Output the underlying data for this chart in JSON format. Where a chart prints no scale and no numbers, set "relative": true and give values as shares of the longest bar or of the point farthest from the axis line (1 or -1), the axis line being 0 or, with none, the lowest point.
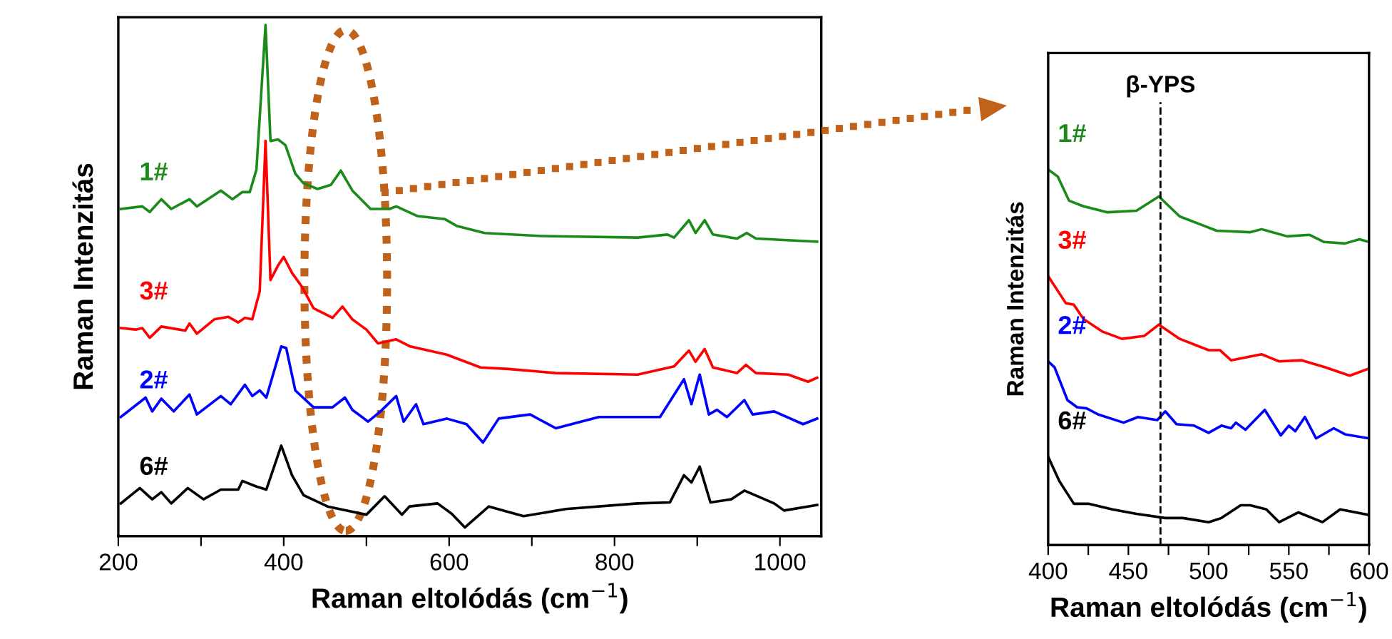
{
  "chart_data": [
    {
      "type": "line",
      "relative": true,
      "xlabel": "Raman eltolódás (cm$^{−1}$)",
      "ylabel": "Raman Intenzitás",
      "xlim": [
        200,
        1050
      ],
      "xticks": [
        200,
        {
          "value": 300,
          "label": null
        },
        400,
        {
          "value": 500,
          "label": null
        },
        600,
        {
          "value": 700,
          "label": null
        },
        800,
        {
          "value": 900,
          "label": null
        },
        1000
      ],
      "tick_labels": "x",
      "grid": false,
      "legend": false,
      "series": [
        {
          "name": "1#",
          "color": "#1a8a1a",
          "x": [
            203,
            229,
            238,
            252,
            264,
            286,
            295,
            324,
            338,
            350,
            359,
            367,
            378,
            384,
            393,
            402,
            414,
            424,
            441,
            457,
            469,
            483,
            505,
            528,
            536,
            562,
            595,
            609,
            643,
            712,
            828,
            864,
            872,
            890,
            898,
            909,
            919,
            948,
            960,
            971,
            1045
          ],
          "values": [
            0.64,
            0.645,
            0.634,
            0.659,
            0.64,
            0.659,
            0.645,
            0.676,
            0.659,
            0.673,
            0.673,
            0.717,
            1.0,
            0.773,
            0.776,
            0.765,
            0.709,
            0.69,
            0.679,
            0.687,
            0.715,
            0.676,
            0.64,
            0.64,
            0.645,
            0.626,
            0.62,
            0.607,
            0.593,
            0.587,
            0.584,
            0.59,
            0.584,
            0.618,
            0.593,
            0.618,
            0.59,
            0.582,
            0.593,
            0.582,
            0.576
          ]
        },
        {
          "name": "3#",
          "color": "#ff0000",
          "x": [
            203,
            221,
            229,
            238,
            252,
            281,
            286,
            295,
            316,
            333,
            345,
            353,
            362,
            371,
            378,
            384,
            393,
            400,
            410,
            422,
            436,
            459,
            471,
            483,
            500,
            514,
            536,
            553,
            597,
            638,
            672,
            729,
            828,
            850,
            872,
            890,
            898,
            909,
            919,
            948,
            959,
            971,
            1010,
            1034,
            1045
          ],
          "values": [
            0.407,
            0.404,
            0.407,
            0.388,
            0.41,
            0.402,
            0.416,
            0.396,
            0.424,
            0.429,
            0.418,
            0.427,
            0.424,
            0.479,
            0.773,
            0.501,
            0.529,
            0.546,
            0.515,
            0.488,
            0.446,
            0.427,
            0.449,
            0.424,
            0.404,
            0.377,
            0.385,
            0.371,
            0.355,
            0.33,
            0.327,
            0.319,
            0.316,
            0.324,
            0.332,
            0.363,
            0.341,
            0.366,
            0.33,
            0.319,
            0.335,
            0.319,
            0.316,
            0.302,
            0.31
          ]
        },
        {
          "name": "2#",
          "color": "#0000ff",
          "x": [
            203,
            233,
            241,
            252,
            267,
            286,
            295,
            324,
            336,
            353,
            362,
            371,
            379,
            397,
            403,
            414,
            436,
            459,
            474,
            483,
            502,
            517,
            536,
            545,
            560,
            569,
            597,
            621,
            641,
            660,
            698,
            729,
            781,
            855,
            884,
            893,
            903,
            914,
            924,
            936,
            957,
            967,
            993,
            1028,
            1045
          ],
          "values": [
            0.233,
            0.271,
            0.244,
            0.269,
            0.244,
            0.277,
            0.238,
            0.274,
            0.258,
            0.296,
            0.274,
            0.285,
            0.271,
            0.371,
            0.368,
            0.285,
            0.252,
            0.252,
            0.271,
            0.247,
            0.224,
            0.244,
            0.274,
            0.224,
            0.258,
            0.219,
            0.23,
            0.219,
            0.183,
            0.23,
            0.238,
            0.211,
            0.233,
            0.233,
            0.307,
            0.258,
            0.316,
            0.238,
            0.247,
            0.233,
            0.266,
            0.238,
            0.244,
            0.219,
            0.23
          ]
        },
        {
          "name": "6#",
          "color": "#000000",
          "x": [
            203,
            226,
            241,
            252,
            264,
            284,
            303,
            324,
            345,
            350,
            367,
            379,
            397,
            410,
            424,
            453,
            500,
            522,
            543,
            552,
            586,
            603,
            619,
            648,
            690,
            741,
            828,
            867,
            884,
            893,
            903,
            916,
            941,
            957,
            993,
            1005,
            1045
          ],
          "values": [
            0.064,
            0.094,
            0.072,
            0.086,
            0.064,
            0.094,
            0.072,
            0.091,
            0.091,
            0.108,
            0.097,
            0.091,
            0.177,
            0.119,
            0.08,
            0.058,
            0.042,
            0.078,
            0.042,
            0.058,
            0.064,
            0.044,
            0.017,
            0.058,
            0.039,
            0.053,
            0.064,
            0.066,
            0.119,
            0.105,
            0.136,
            0.066,
            0.072,
            0.089,
            0.064,
            0.05,
            0.061
          ]
        }
      ]
    },
    {
      "type": "line",
      "relative": true,
      "xlabel": "Raman eltolódás (cm$^{−1}$)",
      "ylabel": "Raman Intenzitás",
      "xlim": [
        400,
        600
      ],
      "xticks": [
        400,
        {
          "value": 425,
          "label": null
        },
        450,
        {
          "value": 475,
          "label": null
        },
        500,
        {
          "value": 525,
          "label": null
        },
        550,
        {
          "value": 575,
          "label": null
        },
        600
      ],
      "tick_labels": "x",
      "grid": false,
      "legend": false,
      "ref_lines": [
        {
          "axis": "x",
          "value": 470,
          "label": "β-YPS",
          "color": "#000000",
          "line_style": "dashed"
        }
      ],
      "series": [
        {
          "name": "1#",
          "color": "#1a8a1a",
          "x": [
            400,
            406,
            413,
            422,
            437,
            455,
            469,
            482,
            496,
            505,
            526,
            533,
            549,
            563,
            572,
            585,
            594,
            600
          ],
          "values": [
            1.0,
            0.981,
            0.917,
            0.902,
            0.886,
            0.89,
            0.928,
            0.875,
            0.852,
            0.837,
            0.833,
            0.841,
            0.822,
            0.826,
            0.807,
            0.803,
            0.814,
            0.807
          ]
        },
        {
          "name": "3#",
          "color": "#ff0000",
          "x": [
            400,
            411,
            416,
            422,
            434,
            446,
            460,
            469,
            482,
            500,
            507,
            514,
            533,
            544,
            558,
            573,
            588,
            600
          ],
          "values": [
            0.716,
            0.644,
            0.64,
            0.602,
            0.568,
            0.549,
            0.557,
            0.587,
            0.549,
            0.519,
            0.519,
            0.492,
            0.508,
            0.489,
            0.492,
            0.473,
            0.451,
            0.47
          ]
        },
        {
          "name": "2#",
          "color": "#0000ff",
          "x": [
            400,
            404,
            412,
            418,
            424,
            431,
            447,
            456,
            468,
            473,
            480,
            491,
            500,
            508,
            514,
            517,
            523,
            535,
            545,
            550,
            554,
            560,
            567,
            578,
            585,
            600
          ],
          "values": [
            0.489,
            0.473,
            0.386,
            0.367,
            0.364,
            0.348,
            0.326,
            0.341,
            0.333,
            0.356,
            0.322,
            0.318,
            0.299,
            0.318,
            0.311,
            0.326,
            0.307,
            0.36,
            0.292,
            0.318,
            0.303,
            0.341,
            0.284,
            0.311,
            0.295,
            0.284
          ]
        },
        {
          "name": "6#",
          "color": "#000000",
          "x": [
            400,
            407,
            416,
            425,
            440,
            455,
            473,
            484,
            500,
            508,
            520,
            526,
            536,
            544,
            556,
            571,
            582,
            600
          ],
          "values": [
            0.235,
            0.17,
            0.11,
            0.11,
            0.095,
            0.083,
            0.072,
            0.072,
            0.061,
            0.072,
            0.106,
            0.106,
            0.095,
            0.061,
            0.087,
            0.061,
            0.095,
            0.08
          ]
        }
      ]
    }
  ]
}
